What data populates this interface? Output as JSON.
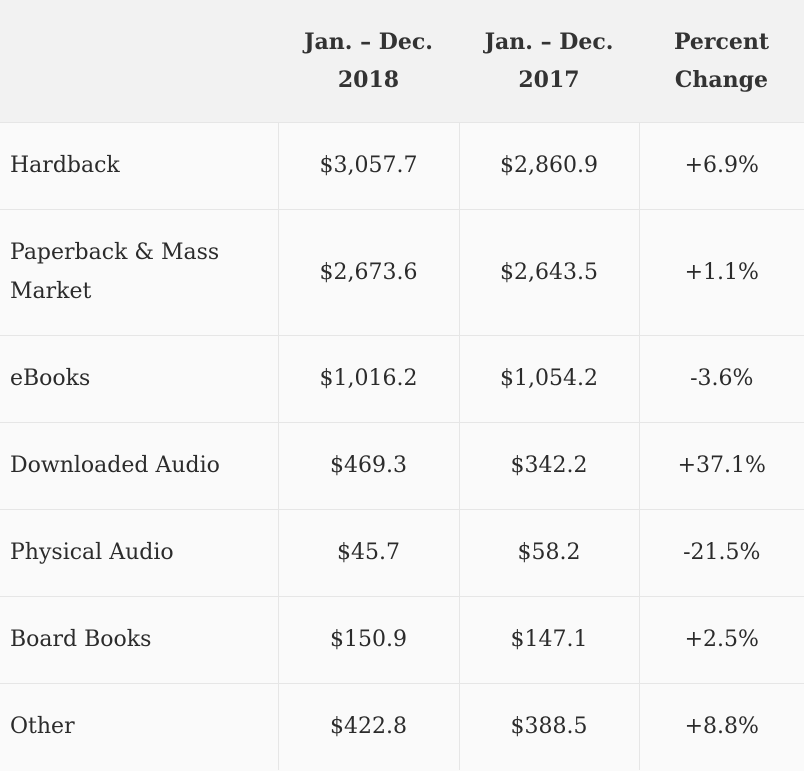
{
  "table": {
    "headers": [
      {
        "line1": "",
        "line2": ""
      },
      {
        "line1": "Jan. – Dec.",
        "line2": "2018"
      },
      {
        "line1": "Jan. – Dec.",
        "line2": "2017"
      },
      {
        "line1": "Percent",
        "line2": "Change"
      }
    ],
    "rows": [
      {
        "category": "Hardback",
        "y2018": "$3,057.7",
        "y2017": "$2,860.9",
        "change": "+6.9%"
      },
      {
        "category": "Paperback & Mass Market",
        "y2018": "$2,673.6",
        "y2017": "$2,643.5",
        "change": "+1.1%"
      },
      {
        "category": "eBooks",
        "y2018": "$1,016.2",
        "y2017": "$1,054.2",
        "change": "-3.6%"
      },
      {
        "category": "Downloaded Audio",
        "y2018": "$469.3",
        "y2017": "$342.2",
        "change": "+37.1%"
      },
      {
        "category": "Physical Audio",
        "y2018": "$45.7",
        "y2017": "$58.2",
        "change": "-21.5%"
      },
      {
        "category": "Board Books",
        "y2018": "$150.9",
        "y2017": "$147.1",
        "change": "+2.5%"
      },
      {
        "category": "Other",
        "y2018": "$422.8",
        "y2017": "$388.5",
        "change": "+8.8%"
      }
    ]
  }
}
